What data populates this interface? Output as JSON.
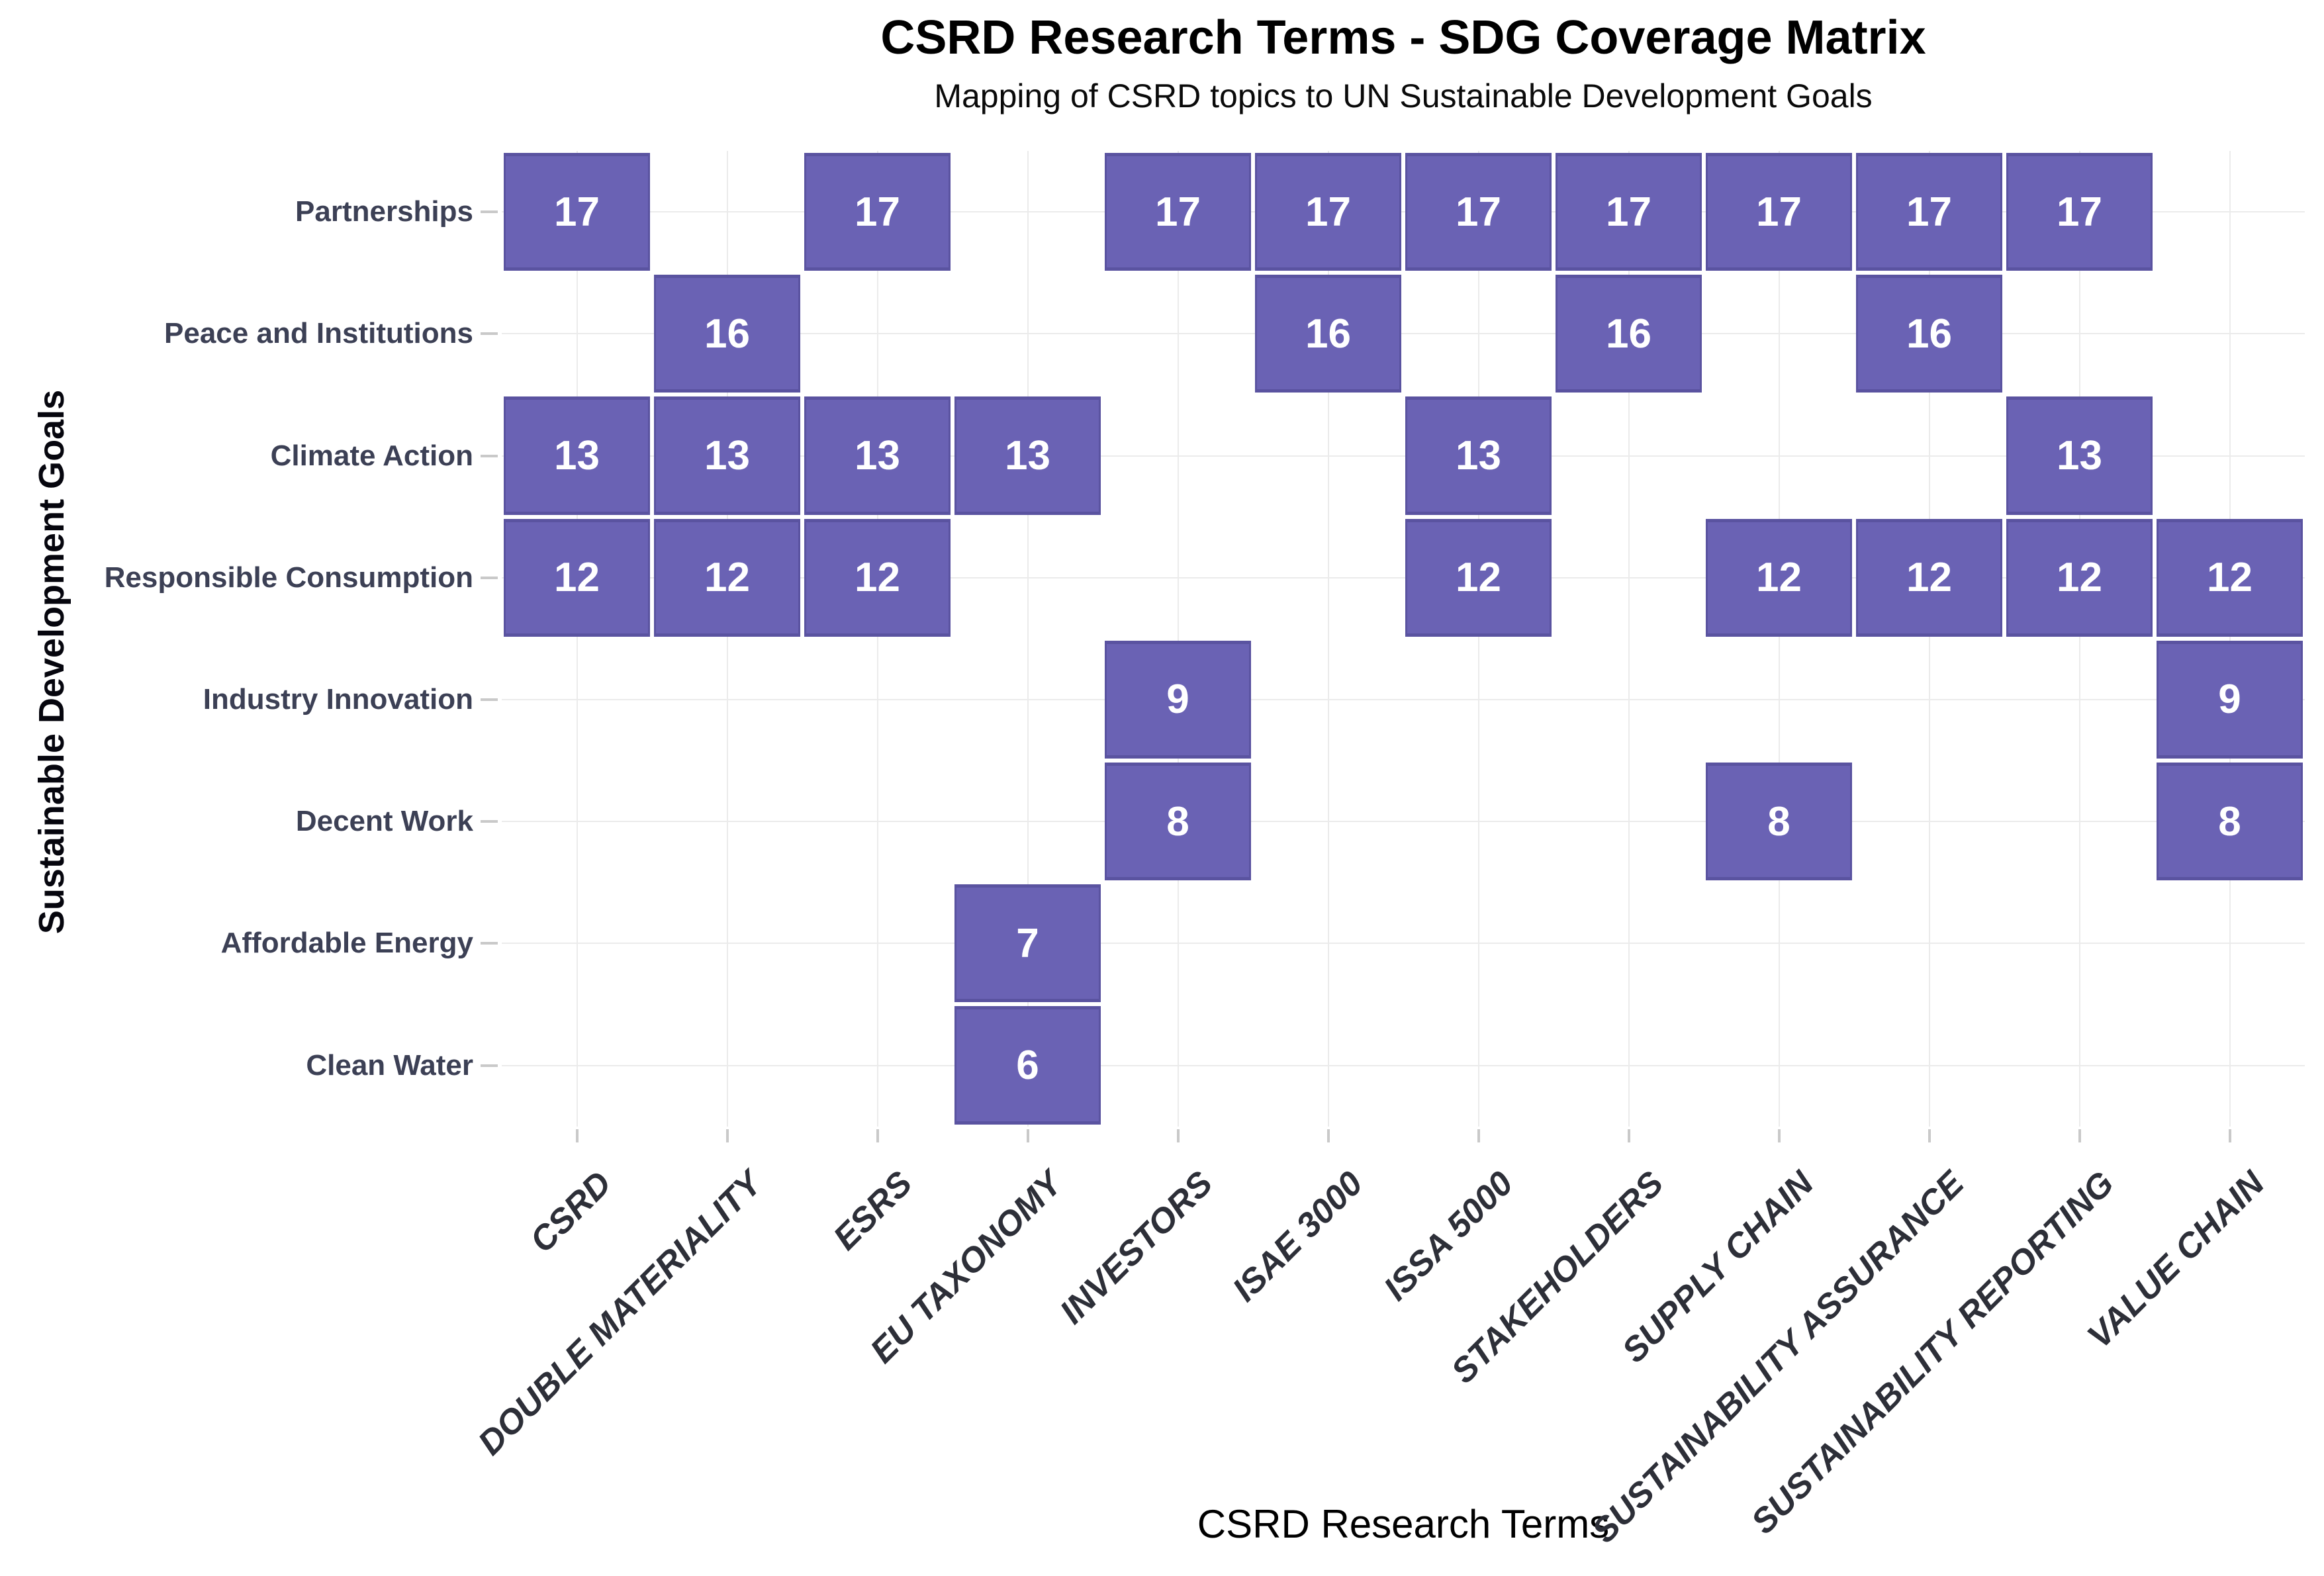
{
  "page": {
    "background_color": "#ffffff"
  },
  "chart_data": {
    "type": "heatmap",
    "title": "CSRD Research Terms - SDG Coverage Matrix",
    "subtitle": "Mapping of CSRD topics to UN Sustainable Development Goals",
    "xlabel": "CSRD Research Terms",
    "ylabel": "Sustainable Development Goals",
    "x_categories": [
      "CSRD",
      "DOUBLE MATERIALITY",
      "ESRS",
      "EU TAXONOMY",
      "INVESTORS",
      "ISAE 3000",
      "ISSA 5000",
      "STAKEHOLDERS",
      "SUPPLY CHAIN",
      "SUSTAINABILITY ASSURANCE",
      "SUSTAINABILITY REPORTING",
      "VALUE CHAIN"
    ],
    "y_categories": [
      "Partnerships",
      "Peace and Institutions",
      "Climate Action",
      "Responsible Consumption",
      "Industry Innovation",
      "Decent Work",
      "Affordable Energy",
      "Clean Water"
    ],
    "sdg_numbers_per_row": [
      17,
      16,
      13,
      12,
      9,
      8,
      7,
      6
    ],
    "matrix": [
      [
        17,
        null,
        17,
        null,
        17,
        17,
        17,
        17,
        17,
        17,
        17,
        null
      ],
      [
        null,
        16,
        null,
        null,
        null,
        16,
        null,
        16,
        null,
        16,
        null,
        null
      ],
      [
        13,
        13,
        13,
        13,
        null,
        null,
        13,
        null,
        null,
        null,
        13,
        null
      ],
      [
        12,
        12,
        12,
        null,
        null,
        null,
        12,
        null,
        12,
        12,
        12,
        12
      ],
      [
        null,
        null,
        null,
        null,
        9,
        null,
        null,
        null,
        null,
        null,
        null,
        9
      ],
      [
        null,
        null,
        null,
        null,
        8,
        null,
        null,
        null,
        8,
        null,
        null,
        8
      ],
      [
        null,
        null,
        null,
        7,
        null,
        null,
        null,
        null,
        null,
        null,
        null,
        null
      ],
      [
        null,
        null,
        null,
        6,
        null,
        null,
        null,
        null,
        null,
        null,
        null,
        null
      ]
    ],
    "cell_fill_color": "#6a62b4",
    "cell_edge_color": "#5a53a0",
    "cell_text_color": "#ffffff",
    "grid": true,
    "grid_color": "#ebebeb",
    "tick_color": "#c9c9c9",
    "legend_position": "none",
    "x_tick_rotation_deg": 45
  }
}
